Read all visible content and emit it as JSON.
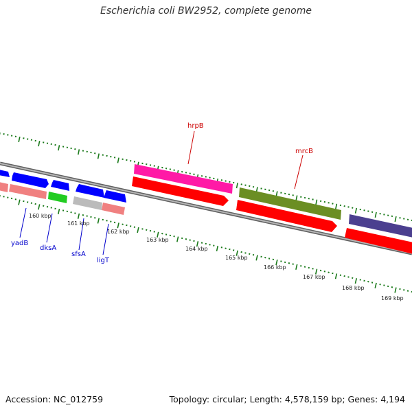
{
  "title": "Escherichia coli BW2952, complete genome",
  "footer": {
    "accession": "Accession: NC_012759",
    "summary": "Topology: circular; Length: 4,578,159 bp; Genes: 4,194"
  },
  "scale_labels": [
    "160 kbp",
    "161 kbp",
    "162 kbp",
    "163 kbp",
    "164 kbp",
    "165 kbp",
    "166 kbp",
    "167 kbp",
    "168 kbp",
    "169 kbp"
  ],
  "gene_labels": {
    "top": [
      {
        "name": "hrpB",
        "color": "#cc0000"
      },
      {
        "name": "mrcB",
        "color": "#cc0000"
      }
    ],
    "bottom": [
      {
        "name": "yadB",
        "color": "#0000cc"
      },
      {
        "name": "dksA",
        "color": "#0000cc"
      },
      {
        "name": "sfsA",
        "color": "#0000cc"
      },
      {
        "name": "ligT",
        "color": "#0000cc"
      }
    ]
  },
  "colors": {
    "backbone": "#808080",
    "tick": "#1a7a1a",
    "cds_red": "#ff0000",
    "rna_pink": "#f08080",
    "gene_blue": "#0000ff",
    "hrpB": "#ff1aa6",
    "mrcB": "#6b8e23",
    "purple": "#4b3f8f",
    "green": "#22cc22",
    "grey": "#bbbbbb"
  }
}
